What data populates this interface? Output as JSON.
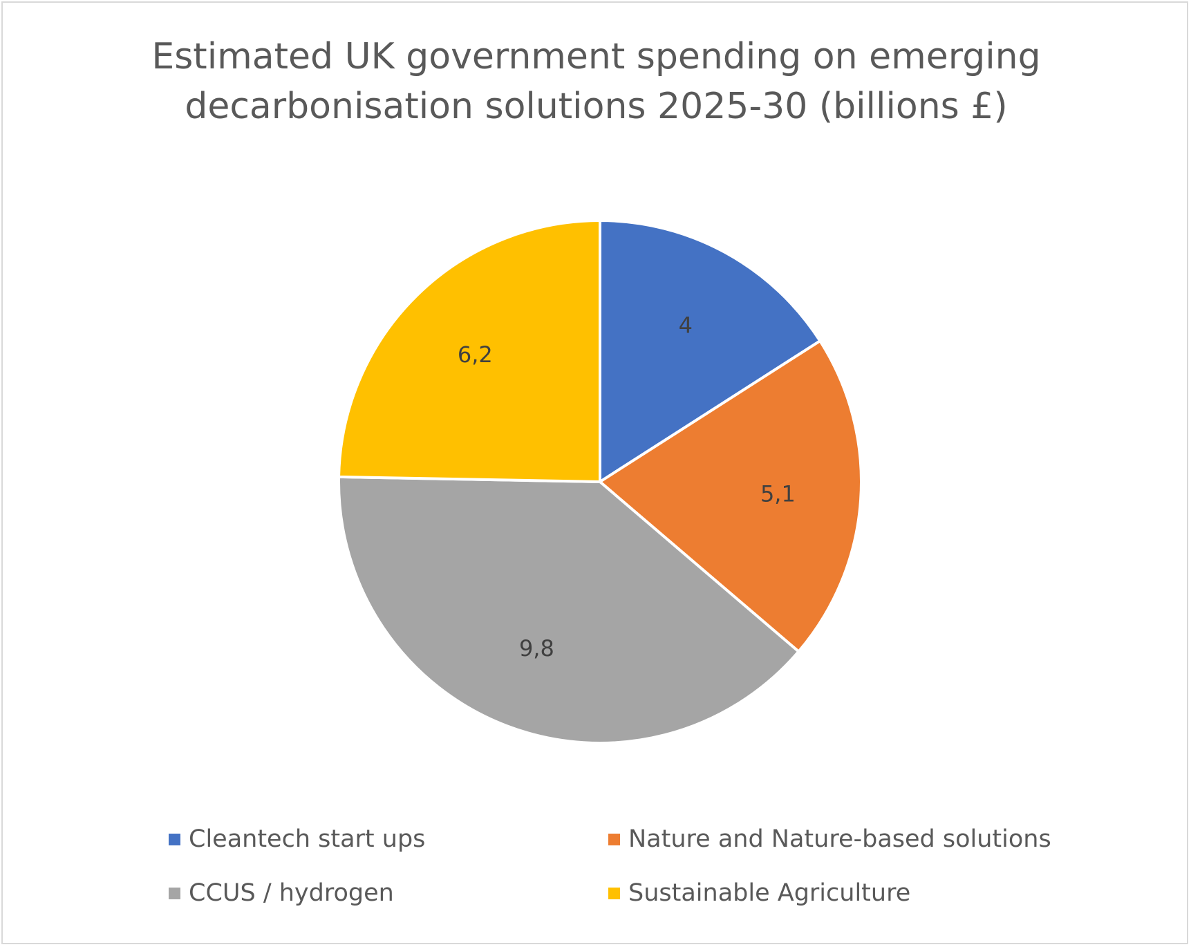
{
  "chart_data": {
    "type": "pie",
    "title_lines": [
      "Estimated UK government spending on emerging",
      "decarbonisation solutions 2025-30 (billions £)"
    ],
    "categories": [
      "Cleantech start ups",
      "Nature and Nature-based solutions",
      "CCUS / hydrogen",
      "Sustainable Agriculture"
    ],
    "values": [
      4,
      5.1,
      9.8,
      6.2
    ],
    "data_labels": [
      "4",
      "5,1",
      "9,8",
      "6,2"
    ],
    "colors": [
      "#4472c4",
      "#ed7d31",
      "#a5a5a5",
      "#ffc000"
    ],
    "legend_position": "bottom",
    "start_angle": "12 o'clock, clockwise"
  }
}
